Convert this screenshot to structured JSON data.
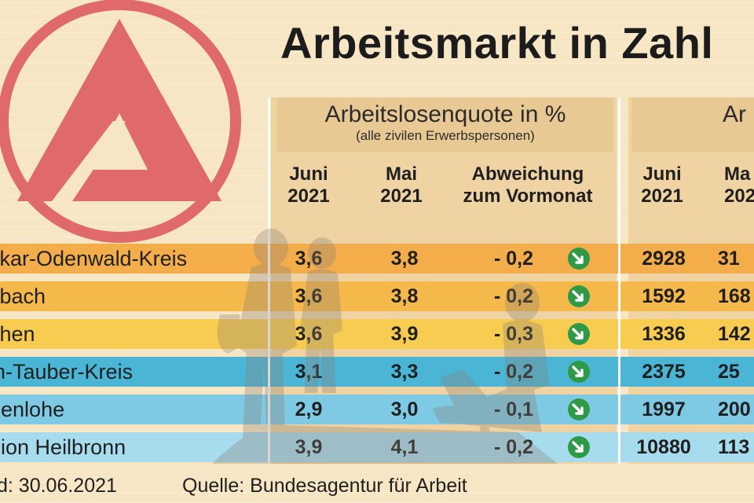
{
  "title": "Arbeitsmarkt in Zahl",
  "panels": [
    {
      "title": "Arbeitslosenquote in %",
      "subtitle": "(alle zivilen Erwerbspersonen)"
    },
    {
      "title": "Ar",
      "subtitle": ""
    }
  ],
  "column_headers": [
    {
      "line1": "Juni",
      "line2": "2021"
    },
    {
      "line1": "Mai",
      "line2": "2021"
    },
    {
      "line1": "Abweichung",
      "line2": "zum Vormonat"
    },
    {
      "line1": "Juni",
      "line2": "2021"
    },
    {
      "line1": "Ma",
      "line2": "202"
    }
  ],
  "rows": [
    {
      "name": "ckar-Odenwald-Kreis",
      "juni": "3,6",
      "mai": "3,8",
      "diff": "- 0,2",
      "count_juni": "2928",
      "count_mai": "31"
    },
    {
      "name": "sbach",
      "juni": "3,6",
      "mai": "3,8",
      "diff": "- 0,2",
      "count_juni": "1592",
      "count_mai": "168"
    },
    {
      "name": "chen",
      "juni": "3,6",
      "mai": "3,9",
      "diff": "- 0,3",
      "count_juni": "1336",
      "count_mai": "142"
    },
    {
      "name": "in-Tauber-Kreis",
      "juni": "3,1",
      "mai": "3,3",
      "diff": "- 0,2",
      "count_juni": "2375",
      "count_mai": "25"
    },
    {
      "name": "henlohe",
      "juni": "2,9",
      "mai": "3,0",
      "diff": "- 0,1",
      "count_juni": "1997",
      "count_mai": "200"
    },
    {
      "name": "gion Heilbronn",
      "juni": "3,9",
      "mai": "4,1",
      "diff": "- 0,2",
      "count_juni": "10880",
      "count_mai": "113"
    }
  ],
  "footer": {
    "stand": "d: 30.06.2021",
    "quelle": "Quelle: Bundesagentur für Arbeit"
  },
  "colors": {
    "logo": "#e06a6a",
    "row_fills": [
      "#f3ad4b",
      "#f5b84a",
      "#f8cc50",
      "#4bb5d6",
      "#7ec9e3",
      "#a7dcee"
    ],
    "arrow": "#2e9a48",
    "background": "#f7e6c4"
  },
  "icons": {
    "trend": "arrow-down-right-icon"
  },
  "chart_data": {
    "type": "table",
    "title": "Arbeitsmarkt in Zahl",
    "columns": [
      "Juni 2021",
      "Mai 2021",
      "Abweichung zum Vormonat",
      "Juni 2021",
      "Ma 202"
    ],
    "rows": [
      [
        "ckar-Odenwald-Kreis",
        "3,6",
        "3,8",
        "- 0,2",
        "2928",
        "31"
      ],
      [
        "sbach",
        "3,6",
        "3,8",
        "- 0,2",
        "1592",
        "168"
      ],
      [
        "chen",
        "3,6",
        "3,9",
        "- 0,3",
        "1336",
        "142"
      ],
      [
        "in-Tauber-Kreis",
        "3,1",
        "3,3",
        "- 0,2",
        "2375",
        "25"
      ],
      [
        "henlohe",
        "2,9",
        "3,0",
        "- 0,1",
        "1997",
        "200"
      ],
      [
        "gion Heilbronn",
        "3,9",
        "4,1",
        "- 0,2",
        "10880",
        "113"
      ]
    ]
  }
}
